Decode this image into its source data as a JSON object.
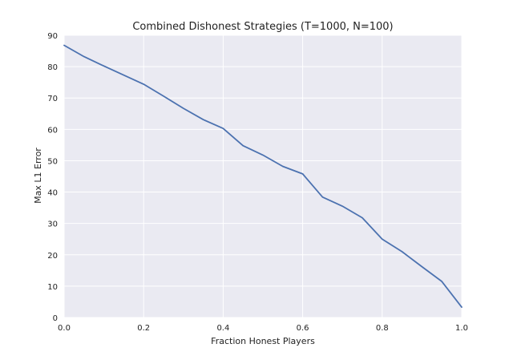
{
  "chart_data": {
    "type": "line",
    "title": "Combined Dishonest Strategies (T=1000, N=100)",
    "xlabel": "Fraction Honest Players",
    "ylabel": "Max L1 Error",
    "xlim": [
      0.0,
      1.0
    ],
    "ylim": [
      0,
      90
    ],
    "xticks": [
      0.0,
      0.2,
      0.4,
      0.6,
      0.8,
      1.0
    ],
    "xtick_labels": [
      "0.0",
      "0.2",
      "0.4",
      "0.6",
      "0.8",
      "1.0"
    ],
    "yticks": [
      0,
      10,
      20,
      30,
      40,
      50,
      60,
      70,
      80,
      90
    ],
    "ytick_labels": [
      "0",
      "10",
      "20",
      "30",
      "40",
      "50",
      "60",
      "70",
      "80",
      "90"
    ],
    "grid": true,
    "legend": "none",
    "series": [
      {
        "color": "#4c72b0",
        "x": [
          0.0,
          0.05,
          0.1,
          0.15,
          0.2,
          0.25,
          0.3,
          0.35,
          0.4,
          0.45,
          0.5,
          0.55,
          0.6,
          0.65,
          0.7,
          0.75,
          0.8,
          0.85,
          0.9,
          0.95,
          1.0
        ],
        "y": [
          86.8,
          83.2,
          80.2,
          77.3,
          74.4,
          70.6,
          66.7,
          63.1,
          60.3,
          54.8,
          51.8,
          48.2,
          45.8,
          38.4,
          35.5,
          31.8,
          25.0,
          21.0,
          16.2,
          11.5,
          3.3
        ]
      }
    ],
    "colors": {
      "plot_background": "#eaeaf2",
      "grid": "#ffffff",
      "line": "#4c72b0"
    }
  }
}
